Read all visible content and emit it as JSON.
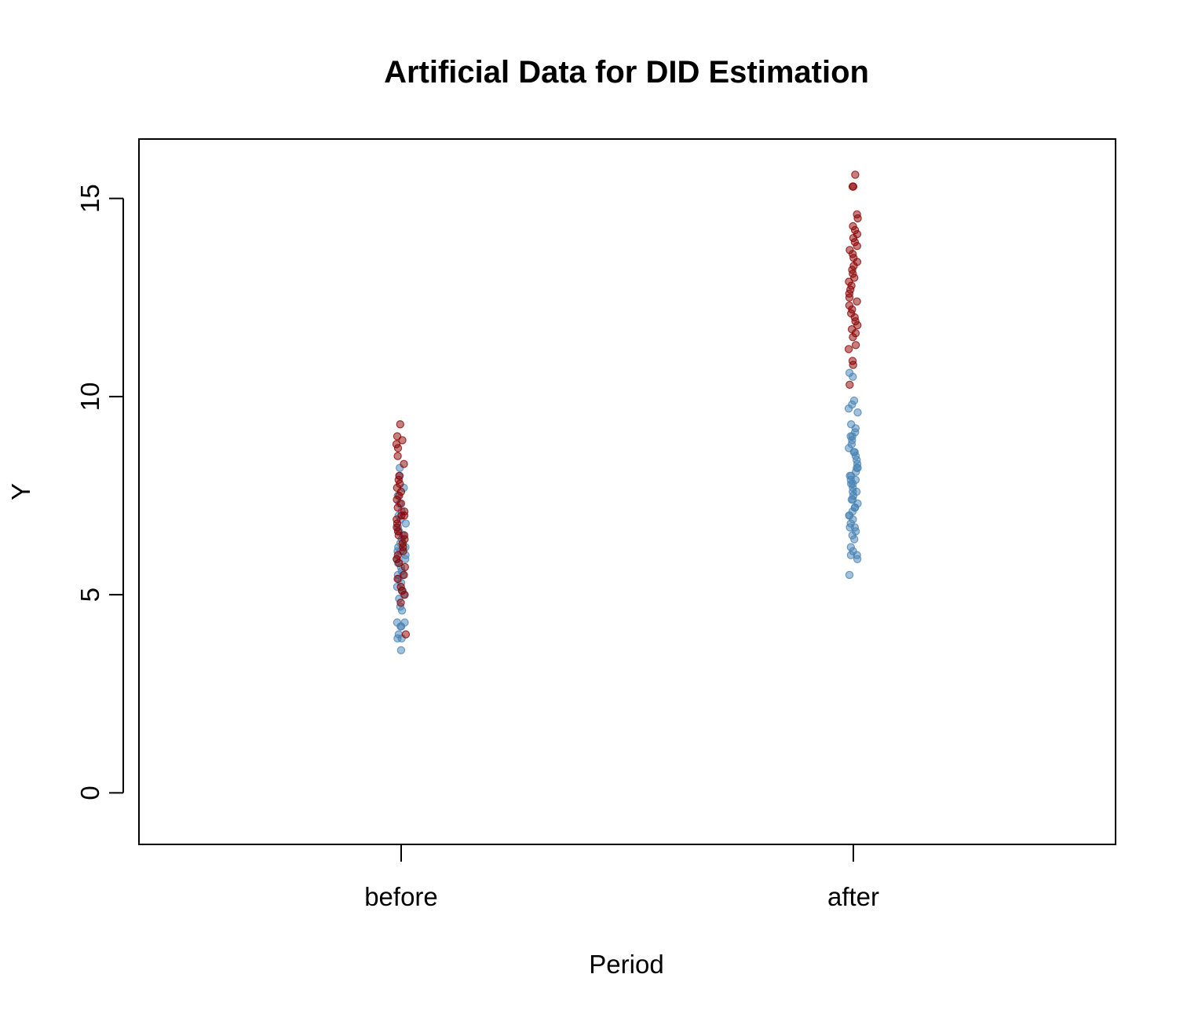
{
  "chart_data": {
    "type": "scatter",
    "title": "Artificial Data for DID Estimation",
    "xlabel": "Period",
    "ylabel": "Y",
    "x_categories": [
      "before",
      "after"
    ],
    "ylim": [
      -1.3,
      16.5
    ],
    "y_ticks": [
      "0",
      "5",
      "10",
      "15"
    ],
    "grid": false,
    "legend": "none",
    "colors": {
      "control": "#4682b4",
      "treatment": "#8b0000"
    },
    "point_alpha": 0.5,
    "series": [
      {
        "group": "control",
        "points": [
          [
            "before",
            3.6
          ],
          [
            "before",
            3.9
          ],
          [
            "before",
            3.9
          ],
          [
            "before",
            4.0
          ],
          [
            "before",
            4.2
          ],
          [
            "before",
            4.2
          ],
          [
            "before",
            4.3
          ],
          [
            "before",
            4.3
          ],
          [
            "before",
            4.6
          ],
          [
            "before",
            4.7
          ],
          [
            "before",
            4.9
          ],
          [
            "before",
            5.0
          ],
          [
            "before",
            5.1
          ],
          [
            "before",
            5.2
          ],
          [
            "before",
            5.3
          ],
          [
            "before",
            5.4
          ],
          [
            "before",
            5.5
          ],
          [
            "before",
            5.5
          ],
          [
            "before",
            5.6
          ],
          [
            "before",
            5.7
          ],
          [
            "before",
            5.8
          ],
          [
            "before",
            5.9
          ],
          [
            "before",
            5.9
          ],
          [
            "before",
            6.0
          ],
          [
            "before",
            6.1
          ],
          [
            "before",
            6.1
          ],
          [
            "before",
            6.2
          ],
          [
            "before",
            6.2
          ],
          [
            "before",
            6.3
          ],
          [
            "before",
            6.4
          ],
          [
            "before",
            6.5
          ],
          [
            "before",
            6.6
          ],
          [
            "before",
            6.7
          ],
          [
            "before",
            6.8
          ],
          [
            "before",
            6.9
          ],
          [
            "before",
            7.0
          ],
          [
            "before",
            7.1
          ],
          [
            "before",
            7.3
          ],
          [
            "before",
            7.5
          ],
          [
            "before",
            7.7
          ],
          [
            "before",
            8.0
          ],
          [
            "before",
            8.2
          ],
          [
            "after",
            5.5
          ],
          [
            "after",
            5.9
          ],
          [
            "after",
            6.0
          ],
          [
            "after",
            6.0
          ],
          [
            "after",
            6.1
          ],
          [
            "after",
            6.2
          ],
          [
            "after",
            6.4
          ],
          [
            "after",
            6.5
          ],
          [
            "after",
            6.6
          ],
          [
            "after",
            6.7
          ],
          [
            "after",
            6.7
          ],
          [
            "after",
            6.8
          ],
          [
            "after",
            6.9
          ],
          [
            "after",
            7.0
          ],
          [
            "after",
            7.0
          ],
          [
            "after",
            7.1
          ],
          [
            "after",
            7.2
          ],
          [
            "after",
            7.2
          ],
          [
            "after",
            7.3
          ],
          [
            "after",
            7.4
          ],
          [
            "after",
            7.4
          ],
          [
            "after",
            7.5
          ],
          [
            "after",
            7.6
          ],
          [
            "after",
            7.6
          ],
          [
            "after",
            7.7
          ],
          [
            "after",
            7.8
          ],
          [
            "after",
            7.8
          ],
          [
            "after",
            7.9
          ],
          [
            "after",
            7.9
          ],
          [
            "after",
            8.0
          ],
          [
            "after",
            8.0
          ],
          [
            "after",
            8.1
          ],
          [
            "after",
            8.2
          ],
          [
            "after",
            8.2
          ],
          [
            "after",
            8.3
          ],
          [
            "after",
            8.4
          ],
          [
            "after",
            8.5
          ],
          [
            "after",
            8.6
          ],
          [
            "after",
            8.6
          ],
          [
            "after",
            8.7
          ],
          [
            "after",
            8.8
          ],
          [
            "after",
            8.9
          ],
          [
            "after",
            9.0
          ],
          [
            "after",
            9.0
          ],
          [
            "after",
            9.1
          ],
          [
            "after",
            9.2
          ],
          [
            "after",
            9.3
          ],
          [
            "after",
            9.6
          ],
          [
            "after",
            9.7
          ],
          [
            "after",
            9.8
          ],
          [
            "after",
            9.9
          ],
          [
            "after",
            10.5
          ],
          [
            "after",
            10.6
          ]
        ]
      },
      {
        "group": "treatment",
        "points": [
          [
            "before",
            4.0
          ],
          [
            "before",
            4.8
          ],
          [
            "before",
            5.0
          ],
          [
            "before",
            5.1
          ],
          [
            "before",
            5.2
          ],
          [
            "before",
            5.4
          ],
          [
            "before",
            5.5
          ],
          [
            "before",
            5.7
          ],
          [
            "before",
            5.8
          ],
          [
            "before",
            5.9
          ],
          [
            "before",
            6.0
          ],
          [
            "before",
            6.1
          ],
          [
            "before",
            6.2
          ],
          [
            "before",
            6.3
          ],
          [
            "before",
            6.4
          ],
          [
            "before",
            6.5
          ],
          [
            "before",
            6.5
          ],
          [
            "before",
            6.6
          ],
          [
            "before",
            6.7
          ],
          [
            "before",
            6.8
          ],
          [
            "before",
            6.9
          ],
          [
            "before",
            7.0
          ],
          [
            "before",
            7.0
          ],
          [
            "before",
            7.1
          ],
          [
            "before",
            7.2
          ],
          [
            "before",
            7.3
          ],
          [
            "before",
            7.4
          ],
          [
            "before",
            7.5
          ],
          [
            "before",
            7.6
          ],
          [
            "before",
            7.7
          ],
          [
            "before",
            7.8
          ],
          [
            "before",
            7.9
          ],
          [
            "before",
            8.0
          ],
          [
            "before",
            8.3
          ],
          [
            "before",
            8.5
          ],
          [
            "before",
            8.7
          ],
          [
            "before",
            8.8
          ],
          [
            "before",
            8.9
          ],
          [
            "before",
            9.0
          ],
          [
            "before",
            9.3
          ],
          [
            "after",
            10.3
          ],
          [
            "after",
            10.8
          ],
          [
            "after",
            10.9
          ],
          [
            "after",
            11.2
          ],
          [
            "after",
            11.3
          ],
          [
            "after",
            11.5
          ],
          [
            "after",
            11.6
          ],
          [
            "after",
            11.7
          ],
          [
            "after",
            11.8
          ],
          [
            "after",
            11.9
          ],
          [
            "after",
            12.0
          ],
          [
            "after",
            12.1
          ],
          [
            "after",
            12.2
          ],
          [
            "after",
            12.3
          ],
          [
            "after",
            12.4
          ],
          [
            "after",
            12.5
          ],
          [
            "after",
            12.6
          ],
          [
            "after",
            12.7
          ],
          [
            "after",
            12.8
          ],
          [
            "after",
            12.9
          ],
          [
            "after",
            13.0
          ],
          [
            "after",
            13.1
          ],
          [
            "after",
            13.2
          ],
          [
            "after",
            13.3
          ],
          [
            "after",
            13.4
          ],
          [
            "after",
            13.5
          ],
          [
            "after",
            13.6
          ],
          [
            "after",
            13.7
          ],
          [
            "after",
            13.8
          ],
          [
            "after",
            13.9
          ],
          [
            "after",
            14.0
          ],
          [
            "after",
            14.1
          ],
          [
            "after",
            14.2
          ],
          [
            "after",
            14.3
          ],
          [
            "after",
            14.5
          ],
          [
            "after",
            14.6
          ],
          [
            "after",
            15.3
          ],
          [
            "after",
            15.3
          ],
          [
            "after",
            15.6
          ]
        ]
      }
    ]
  }
}
